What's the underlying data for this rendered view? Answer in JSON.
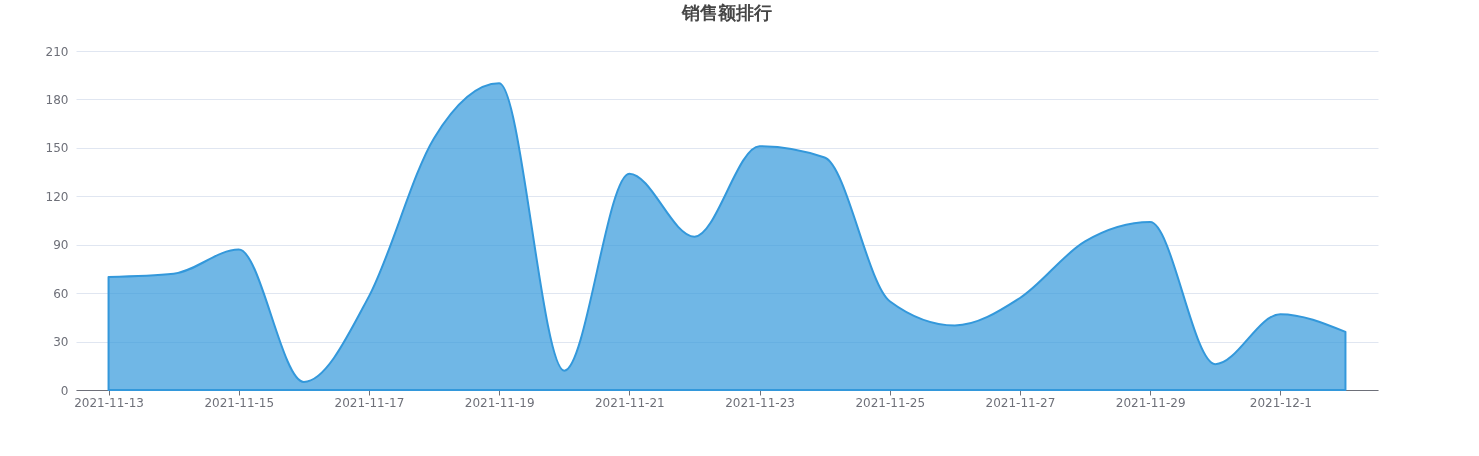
{
  "chart_data": {
    "type": "area",
    "title": "销售额排行",
    "categories": [
      "2021-11-13",
      null,
      "2021-11-15",
      null,
      "2021-11-17",
      null,
      "2021-11-19",
      null,
      "2021-11-21",
      null,
      "2021-11-23",
      null,
      "2021-11-25",
      null,
      "2021-11-27",
      null,
      "2021-11-29",
      null,
      "2021-12-1",
      null
    ],
    "series": [
      {
        "color": "#3398db",
        "values": [
          70,
          72,
          87,
          5,
          58,
          156,
          190,
          12,
          134,
          95,
          151,
          144,
          55,
          40,
          57,
          92,
          104,
          16,
          47,
          36
        ]
      }
    ],
    "ylim": [
      0,
      210
    ],
    "yticks": [
      0,
      30,
      60,
      90,
      120,
      150,
      180,
      210
    ],
    "grid": "y"
  }
}
